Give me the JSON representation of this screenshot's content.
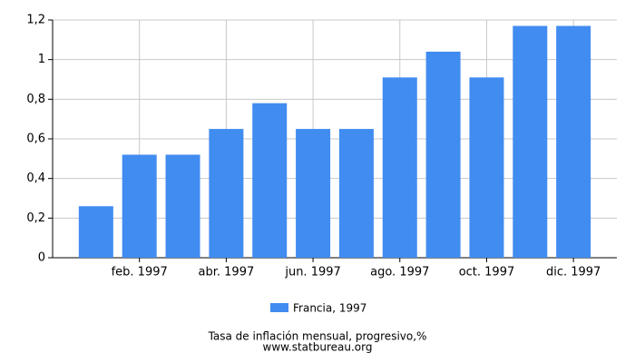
{
  "chart_data": {
    "type": "bar",
    "title": "Tasa de inflación mensual, progresivo,%",
    "subtitle": "www.statbureau.org",
    "categories": [
      null,
      "feb. 1997",
      null,
      "abr. 1997",
      null,
      "jun. 1997",
      null,
      "ago. 1997",
      null,
      "oct. 1997",
      null,
      "dic. 1997"
    ],
    "series": [
      {
        "name": "Francia, 1997",
        "color": "#418cf0",
        "values": [
          0.26,
          0.52,
          0.52,
          0.65,
          0.78,
          0.65,
          0.65,
          0.91,
          1.04,
          0.91,
          1.17,
          1.17
        ]
      }
    ],
    "ylim": [
      0,
      1.2
    ],
    "yticks": [
      0,
      {
        "value": 0.2,
        "label": "0,2"
      },
      {
        "value": 0.4,
        "label": "0,4"
      },
      {
        "value": 0.6,
        "label": "0,6"
      },
      {
        "value": 0.8,
        "label": "0,8"
      },
      1,
      {
        "value": 1.2,
        "label": "1,2"
      }
    ],
    "grid": true
  }
}
